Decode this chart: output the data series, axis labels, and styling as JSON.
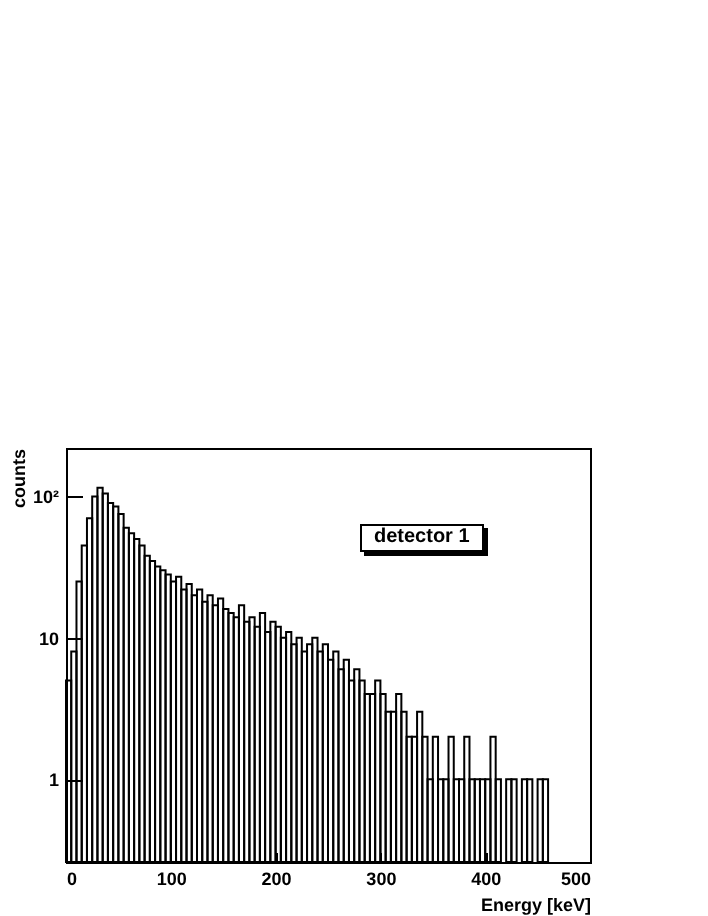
{
  "chart_data": {
    "type": "histogram",
    "xlabel": "Energy [keV]",
    "ylabel": "counts",
    "annotations": [
      "detector 1"
    ],
    "bins": [
      0,
      5,
      10,
      15,
      20,
      25,
      30,
      35,
      40,
      45,
      50,
      55,
      60,
      65,
      70,
      75,
      80,
      85,
      90,
      95,
      100,
      105,
      110,
      115,
      120,
      125,
      130,
      135,
      140,
      145,
      150,
      155,
      160,
      165,
      170,
      175,
      180,
      185,
      190,
      195,
      200,
      205,
      210,
      215,
      220,
      225,
      230,
      235,
      240,
      245,
      250,
      255,
      260,
      265,
      270,
      275,
      280,
      285,
      290,
      295,
      300,
      305,
      310,
      315,
      320,
      325,
      330,
      335,
      340,
      345,
      350,
      355,
      360,
      365,
      370,
      375,
      380,
      385,
      390,
      395,
      400,
      405,
      410,
      415,
      420,
      425,
      430,
      435,
      440,
      445,
      450,
      455,
      460
    ],
    "values": [
      5,
      8,
      25,
      45,
      70,
      100,
      115,
      105,
      90,
      85,
      75,
      60,
      55,
      50,
      45,
      38,
      35,
      32,
      30,
      28,
      25,
      27,
      22,
      24,
      20,
      22,
      18,
      20,
      17,
      19,
      16,
      15,
      14,
      17,
      13,
      14,
      12,
      15,
      11,
      13,
      12,
      10,
      11,
      9,
      10,
      8,
      9,
      10,
      8,
      9,
      7,
      8,
      6,
      7,
      5,
      6,
      5,
      4,
      4,
      5,
      4,
      3,
      3,
      4,
      3,
      2,
      2,
      3,
      2,
      1,
      2,
      1,
      1,
      2,
      1,
      1,
      2,
      1,
      1,
      1,
      1,
      2,
      1,
      null,
      1,
      1,
      null,
      1,
      1,
      null,
      1,
      1
    ],
    "color": "#000000",
    "log": "y",
    "xlim": [
      0,
      500
    ],
    "ylim": [
      0.26,
      220
    ],
    "xticks": [
      0,
      100,
      200,
      300,
      400,
      500
    ],
    "yticks": [
      1,
      10,
      {
        "value": 100,
        "label": "10²"
      }
    ],
    "grid": false
  }
}
